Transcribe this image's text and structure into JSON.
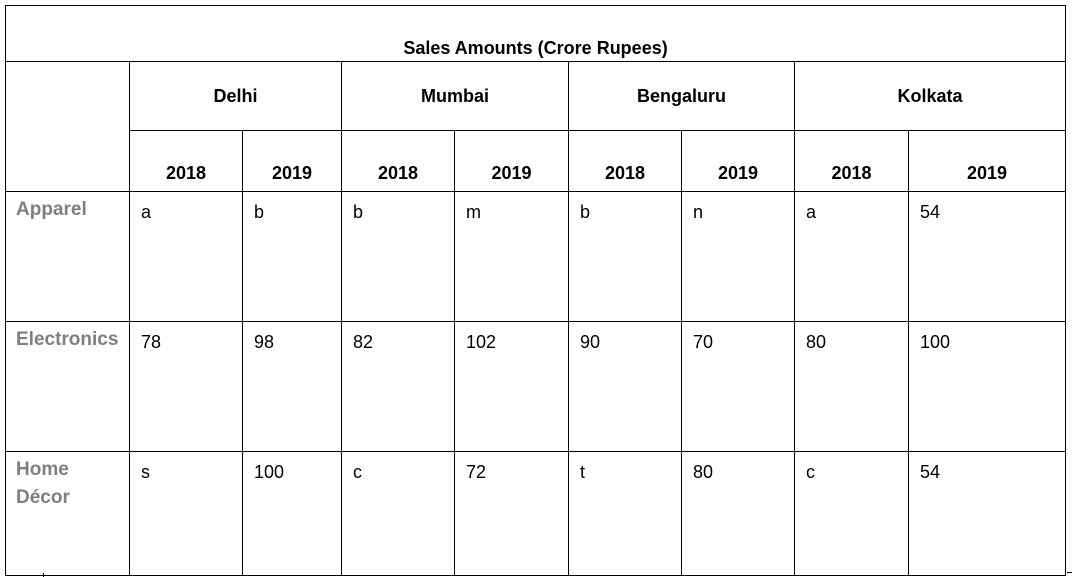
{
  "table": {
    "title": "Sales Amounts (Crore Rupees)",
    "cities": [
      "Delhi",
      "Mumbai",
      "Bengaluru",
      "Kolkata"
    ],
    "years": [
      "2018",
      "2019"
    ],
    "rows": [
      {
        "label": "Apparel",
        "values": [
          "a",
          "b",
          "b",
          "m",
          "b",
          "n",
          "a",
          "54"
        ]
      },
      {
        "label": "Electronics",
        "values": [
          "78",
          "98",
          "82",
          "102",
          "90",
          "70",
          "80",
          "100"
        ]
      },
      {
        "label": "Home Décor",
        "values": [
          "s",
          "100",
          "c",
          "72",
          "t",
          "80",
          "c",
          "54"
        ]
      }
    ]
  }
}
